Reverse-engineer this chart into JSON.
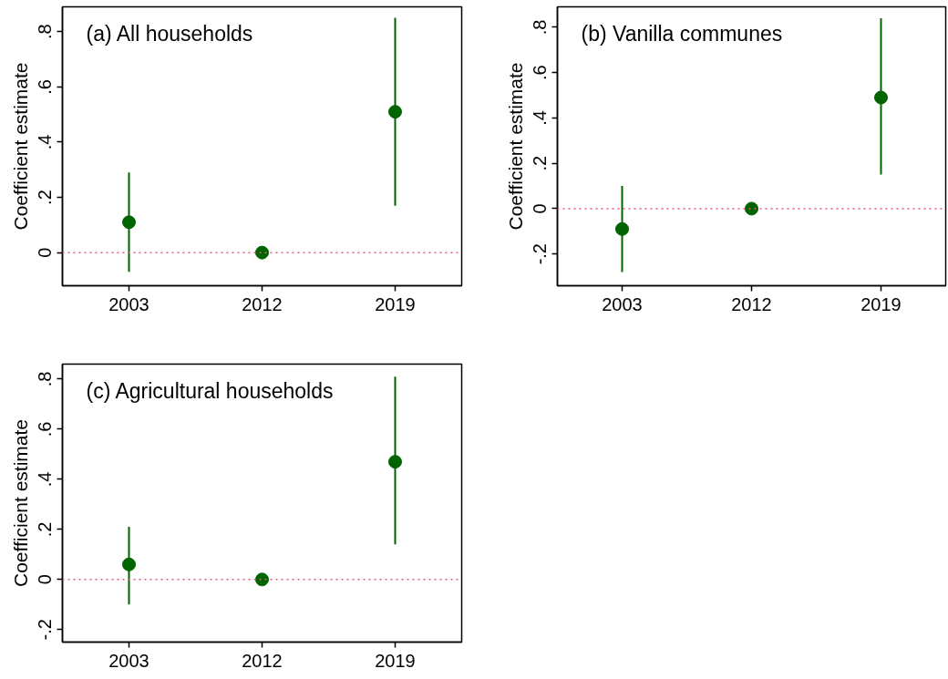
{
  "chart_data": [
    {
      "type": "scatter",
      "title": "(a) All households",
      "ylabel": "Coefficient estimate",
      "categories": [
        "2003",
        "2012",
        "2019"
      ],
      "values": [
        0.11,
        0,
        0.51
      ],
      "errors": [
        [
          -0.07,
          0.29
        ],
        null,
        [
          0.17,
          0.85
        ]
      ],
      "color": "#006400",
      "marker": "circle",
      "ylim": [
        -0.12,
        0.89
      ],
      "yticks": [
        0,
        {
          "value": 0.2,
          "label": ".2"
        },
        {
          "value": 0.4,
          "label": ".4"
        },
        {
          "value": 0.6,
          "label": ".6"
        },
        {
          "value": 0.8,
          "label": ".8"
        }
      ],
      "ref_lines": [
        {
          "axis": "y",
          "value": 0,
          "color": "#e8577f",
          "line_style": "dotted"
        }
      ],
      "grid": false
    },
    {
      "type": "scatter",
      "title": "(b) Vanilla communes",
      "ylabel": "Coefficient estimate",
      "categories": [
        "2003",
        "2012",
        "2019"
      ],
      "values": [
        -0.09,
        0,
        0.49
      ],
      "errors": [
        [
          -0.28,
          0.1
        ],
        null,
        [
          0.15,
          0.84
        ]
      ],
      "color": "#006400",
      "marker": "circle",
      "ylim": [
        -0.34,
        0.89
      ],
      "yticks": [
        {
          "value": -0.2,
          "label": "-.2"
        },
        0,
        {
          "value": 0.2,
          "label": ".2"
        },
        {
          "value": 0.4,
          "label": ".4"
        },
        {
          "value": 0.6,
          "label": ".6"
        },
        {
          "value": 0.8,
          "label": ".8"
        }
      ],
      "ref_lines": [
        {
          "axis": "y",
          "value": 0,
          "color": "#e8577f",
          "line_style": "dotted"
        }
      ],
      "grid": false
    },
    {
      "type": "scatter",
      "title": "(c) Agricultural households",
      "ylabel": "Coefficient estimate",
      "categories": [
        "2003",
        "2012",
        "2019"
      ],
      "values": [
        0.06,
        0,
        0.47
      ],
      "errors": [
        [
          -0.1,
          0.21
        ],
        null,
        [
          0.14,
          0.81
        ]
      ],
      "color": "#006400",
      "marker": "circle",
      "ylim": [
        -0.25,
        0.86
      ],
      "yticks": [
        {
          "value": -0.2,
          "label": "-.2"
        },
        0,
        {
          "value": 0.2,
          "label": ".2"
        },
        {
          "value": 0.4,
          "label": ".4"
        },
        {
          "value": 0.6,
          "label": ".6"
        },
        {
          "value": 0.8,
          "label": ".8"
        }
      ],
      "ref_lines": [
        {
          "axis": "y",
          "value": 0,
          "color": "#e8577f",
          "line_style": "dotted"
        }
      ],
      "grid": false
    }
  ]
}
